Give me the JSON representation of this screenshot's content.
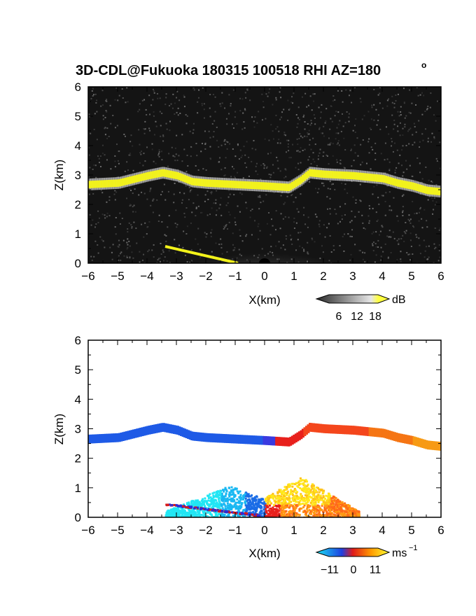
{
  "title_main": "3D-CDL@Fukuoka 180315 100518 RHI AZ=180",
  "title_deg": "o",
  "chart_data": [
    {
      "type": "heatmap",
      "name": "reflectivity",
      "xlabel": "X(km)",
      "ylabel": "Z(km)",
      "xlim": [
        -6,
        6
      ],
      "ylim": [
        0,
        6
      ],
      "x_ticks": [
        "-6",
        "-5",
        "-4",
        "-3",
        "-2",
        "-1",
        "0",
        "1",
        "2",
        "3",
        "4",
        "5",
        "6"
      ],
      "y_ticks": [
        "0",
        "1",
        "2",
        "3",
        "4",
        "5",
        "6"
      ],
      "layer_top_x": [
        -6,
        -5,
        -4,
        -3.5,
        -3,
        -2.5,
        -2,
        -1,
        0,
        0.8,
        1.2,
        1.5,
        2,
        3,
        4,
        4.5,
        5,
        5.5,
        6
      ],
      "layer_top_z": [
        2.8,
        2.85,
        3.1,
        3.2,
        3.1,
        2.9,
        2.85,
        2.8,
        2.75,
        2.7,
        2.95,
        3.2,
        3.15,
        3.1,
        3.0,
        2.85,
        2.75,
        2.6,
        2.55
      ],
      "colorbar": {
        "unit": "dB",
        "ticks": [
          "6",
          "12",
          "18"
        ]
      },
      "colors": {
        "layer": "#f2f21a",
        "background": "#111111",
        "echo": "#d8d8d8"
      }
    },
    {
      "type": "heatmap",
      "name": "doppler_velocity",
      "xlabel": "X(km)",
      "ylabel": "Z(km)",
      "xlim": [
        -6,
        6
      ],
      "ylim": [
        0,
        6
      ],
      "x_ticks": [
        "-6",
        "-5",
        "-4",
        "-3",
        "-2",
        "-1",
        "0",
        "1",
        "2",
        "3",
        "4",
        "5",
        "6"
      ],
      "y_ticks": [
        "0",
        "1",
        "2",
        "3",
        "4",
        "5",
        "6"
      ],
      "colorbar": {
        "unit": "ms",
        "unit_exp": "−1",
        "ticks": [
          "−11",
          "0",
          "11"
        ],
        "range": [
          -11,
          11
        ]
      },
      "colors": {
        "negative": "#1f5fe0",
        "cyan": "#19e3f2",
        "zero": "#e01a1a",
        "positive": "#ff8a00",
        "max": "#ffff33"
      }
    }
  ]
}
